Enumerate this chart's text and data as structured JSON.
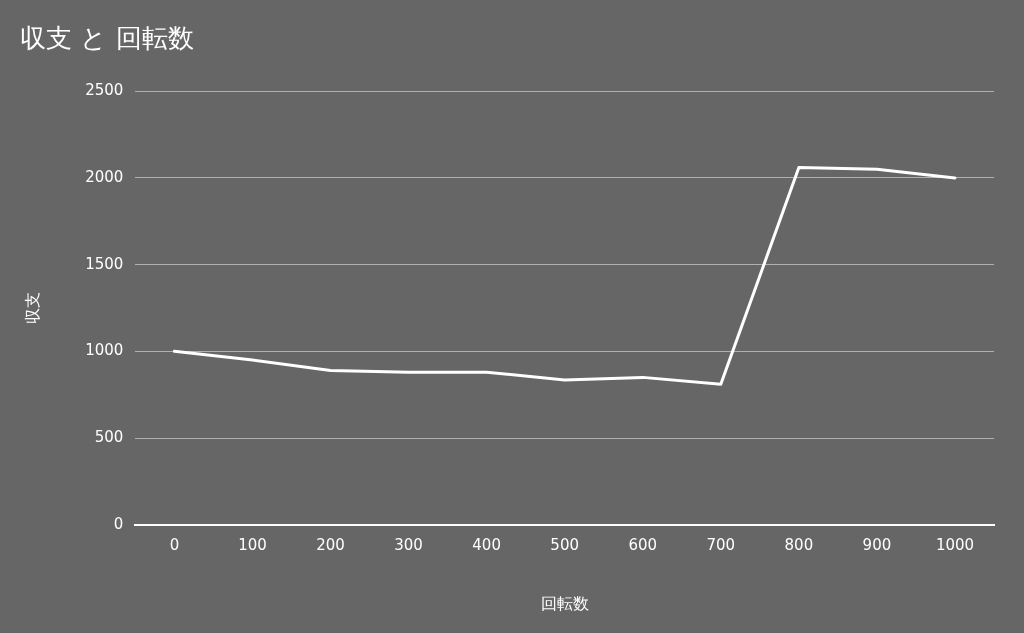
{
  "chart_data": {
    "type": "line",
    "title": "収支 と 回転数",
    "xlabel": "回転数",
    "ylabel": "収支",
    "categories": [
      "0",
      "100",
      "200",
      "300",
      "400",
      "500",
      "600",
      "700",
      "800",
      "900",
      "1000"
    ],
    "series": [
      {
        "color": "#ffffff",
        "values": [
          1000,
          950,
          890,
          880,
          880,
          835,
          850,
          810,
          2060,
          2050,
          2000
        ]
      }
    ],
    "ylim": [
      0,
      2500
    ],
    "yticks": [
      0,
      500,
      1000,
      1500,
      2000,
      2500
    ],
    "grid": "y",
    "legend": false,
    "marker": "none",
    "line_style": "solid"
  }
}
